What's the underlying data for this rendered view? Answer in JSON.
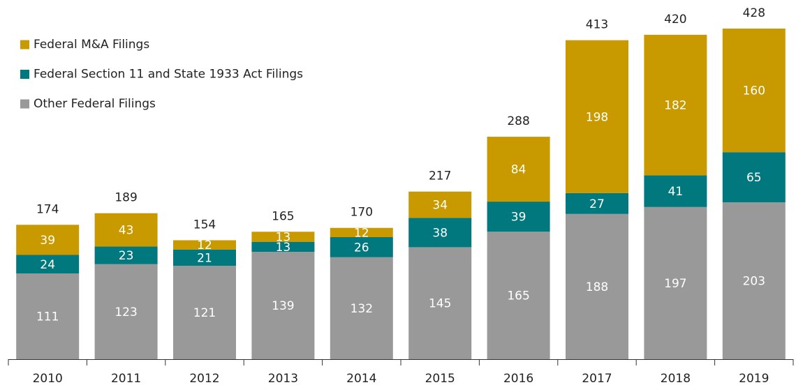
{
  "chart_data": {
    "type": "stacked_bar",
    "categories": [
      "2010",
      "2011",
      "2012",
      "2013",
      "2014",
      "2015",
      "2016",
      "2017",
      "2018",
      "2019"
    ],
    "series": [
      {
        "name": "Federal M&A Filings",
        "color": "#c99a00",
        "values": [
          39,
          43,
          12,
          13,
          12,
          34,
          84,
          198,
          182,
          160
        ]
      },
      {
        "name": "Federal Section 11 and State 1933 Act Filings",
        "color": "#00787e",
        "values": [
          24,
          23,
          21,
          13,
          26,
          38,
          39,
          27,
          41,
          65
        ]
      },
      {
        "name": "Other Federal Filings",
        "color": "#999999",
        "values": [
          111,
          123,
          121,
          139,
          132,
          145,
          165,
          188,
          197,
          203
        ]
      }
    ],
    "totals": [
      174,
      189,
      154,
      165,
      170,
      217,
      288,
      413,
      420,
      428
    ],
    "legend": "top-left"
  }
}
